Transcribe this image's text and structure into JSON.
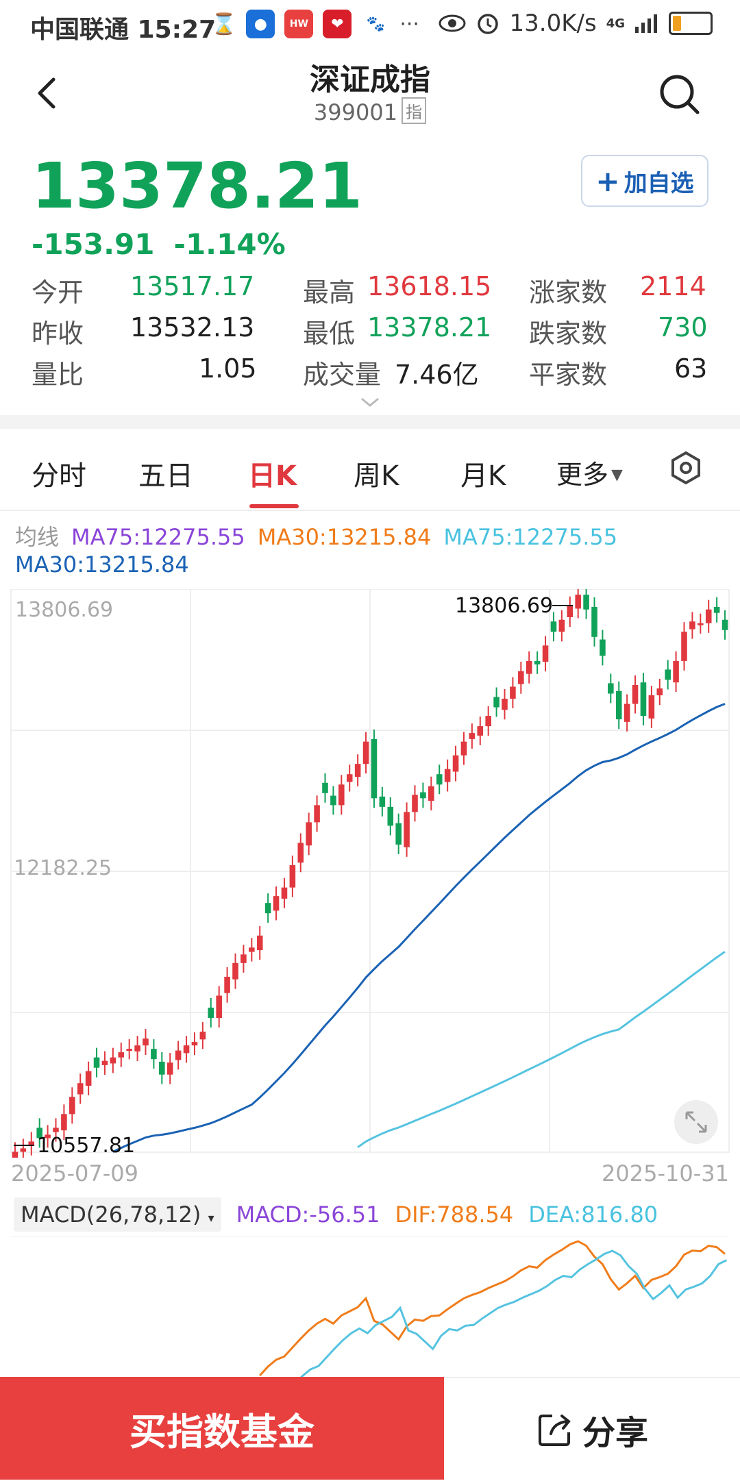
{
  "status_bar": {
    "carrier_time": "中国联通 15:27",
    "speed": "13.0K/s",
    "signal": "4G"
  },
  "header": {
    "title": "深证成指",
    "code": "399001",
    "code_tag": "指"
  },
  "quote": {
    "price": "13378.21",
    "change": "-153.91",
    "change_pct": "-1.14%",
    "add_watch": "加自选"
  },
  "stats": {
    "open_label": "今开",
    "open": "13517.17",
    "prev_label": "昨收",
    "prev": "13532.13",
    "ratio_label": "量比",
    "ratio": "1.05",
    "high_label": "最高",
    "high": "13618.15",
    "low_label": "最低",
    "low": "13378.21",
    "volume_label": "成交量",
    "volume": "7.46亿",
    "up_label": "涨家数",
    "up": "2114",
    "down_label": "跌家数",
    "down": "730",
    "flat_label": "平家数",
    "flat": "63"
  },
  "tabs": [
    "分时",
    "五日",
    "日K",
    "周K",
    "月K",
    "更多"
  ],
  "ma_legend": {
    "title": "均线",
    "ma75a": "MA75:12275.55",
    "ma30a": "MA30:13215.84",
    "ma75b": "MA75:12275.55",
    "ma30b": "MA30:13215.84"
  },
  "chart_data": {
    "type": "candlestick",
    "y_labels": [
      "13806.69",
      "12182.25"
    ],
    "max_label": "13806.69",
    "min_label": "10557.81",
    "start_date": "2025-07-09",
    "end_date": "2025-10-31",
    "ylim": [
      10557.81,
      13806.69
    ],
    "close_approx": [
      10560,
      10580,
      10620,
      10640,
      10660,
      10700,
      10780,
      10880,
      10960,
      11030,
      11050,
      11090,
      11110,
      11140,
      11160,
      11180,
      11220,
      11100,
      11010,
      11080,
      11150,
      11180,
      11200,
      11260,
      11340,
      11470,
      11580,
      11660,
      11710,
      11750,
      11820,
      11950,
      12050,
      12100,
      12230,
      12360,
      12480,
      12580,
      12650,
      12580,
      12700,
      12760,
      12820,
      12950,
      12620,
      12570,
      12460,
      12350,
      12540,
      12640,
      12620,
      12690,
      12700,
      12790,
      12870,
      12950,
      13000,
      13040,
      13100,
      13150,
      13200,
      13270,
      13360,
      13420,
      13400,
      13510,
      13590,
      13660,
      13740,
      13806,
      13720,
      13560,
      13450,
      13230,
      13080,
      13170,
      13280,
      13100,
      13220,
      13260,
      13310,
      13420,
      13590,
      13650,
      13640,
      13720,
      13700,
      13600
    ]
  },
  "macd": {
    "selector": "MACD(26,78,12)",
    "macd": "MACD:-56.51",
    "dif": "DIF:788.54",
    "dea": "DEA:816.80"
  },
  "bottom": {
    "buy": "买指数基金",
    "share": "分享"
  },
  "colors": {
    "up": "#e0383e",
    "down": "#11a25a",
    "accent": "#e8403f"
  }
}
